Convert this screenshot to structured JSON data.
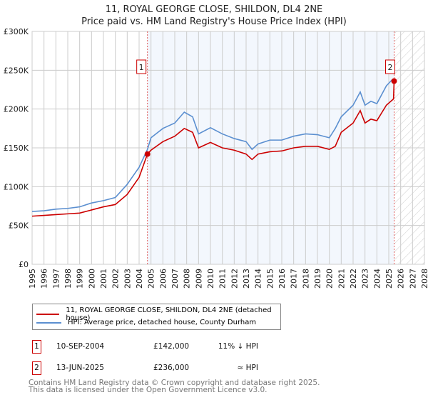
{
  "title": "11, ROYAL GEORGE CLOSE, SHILDON, DL4 2NE",
  "subtitle": "Price paid vs. HM Land Registry's House Price Index (HPI)",
  "chart_data": {
    "type": "line",
    "xlim": [
      1995,
      2028
    ],
    "ylim": [
      0,
      300000
    ],
    "x_ticks": [
      "1995",
      "1996",
      "1997",
      "1998",
      "1999",
      "2000",
      "2001",
      "2002",
      "2003",
      "2004",
      "2005",
      "2006",
      "2007",
      "2008",
      "2009",
      "2010",
      "2011",
      "2012",
      "2013",
      "2014",
      "2015",
      "2016",
      "2017",
      "2018",
      "2019",
      "2020",
      "2021",
      "2022",
      "2023",
      "2024",
      "2025",
      "2026",
      "2027",
      "2028"
    ],
    "y_ticks": [
      {
        "v": 0,
        "label": "£0"
      },
      {
        "v": 50000,
        "label": "£50K"
      },
      {
        "v": 100000,
        "label": "£100K"
      },
      {
        "v": 150000,
        "label": "£150K"
      },
      {
        "v": 200000,
        "label": "£200K"
      },
      {
        "v": 250000,
        "label": "£250K"
      },
      {
        "v": 300000,
        "label": "£300K"
      }
    ],
    "grid": true,
    "shaded_span": [
      2004.7,
      2025.45
    ],
    "hatched_from": 2025.45,
    "series": [
      {
        "name": "11, ROYAL GEORGE CLOSE, SHILDON, DL4 2NE (detached house)",
        "color": "#cc0000",
        "x": [
          1995,
          1996,
          1997,
          1998,
          1999,
          2000,
          2001,
          2002,
          2003,
          2004,
          2004.7,
          2005,
          2006,
          2007,
          2007.8,
          2008.5,
          2009,
          2010,
          2011,
          2012,
          2013,
          2013.5,
          2014,
          2015,
          2016,
          2017,
          2018,
          2019,
          2020,
          2020.5,
          2021,
          2022,
          2022.6,
          2023,
          2023.5,
          2024,
          2024.8,
          2025.4,
          2025.45
        ],
        "y": [
          62000,
          63000,
          64000,
          65000,
          66000,
          70000,
          74000,
          77000,
          90000,
          112000,
          142000,
          147000,
          158000,
          165000,
          175000,
          170000,
          150000,
          157000,
          150000,
          147000,
          142000,
          135000,
          142000,
          145000,
          146000,
          150000,
          152000,
          152000,
          148000,
          152000,
          170000,
          182000,
          198000,
          182000,
          187000,
          185000,
          205000,
          213000,
          236000
        ]
      },
      {
        "name": "HPI: Average price, detached house, County Durham",
        "color": "#5b8fd0",
        "x": [
          1995,
          1996,
          1997,
          1998,
          1999,
          2000,
          2001,
          2002,
          2003,
          2004,
          2004.7,
          2005,
          2006,
          2007,
          2007.8,
          2008.5,
          2009,
          2010,
          2011,
          2012,
          2013,
          2013.5,
          2014,
          2015,
          2016,
          2017,
          2018,
          2019,
          2020,
          2020.5,
          2021,
          2022,
          2022.6,
          2023,
          2023.5,
          2024,
          2024.8,
          2025.3
        ],
        "y": [
          68000,
          69000,
          71000,
          72000,
          74000,
          79000,
          82000,
          86000,
          103000,
          125000,
          148000,
          163000,
          175000,
          182000,
          196000,
          190000,
          168000,
          176000,
          168000,
          162000,
          158000,
          148000,
          155000,
          160000,
          160000,
          165000,
          168000,
          167000,
          163000,
          175000,
          190000,
          205000,
          222000,
          205000,
          210000,
          207000,
          230000,
          238000
        ]
      }
    ],
    "sales": [
      {
        "label": "1",
        "x": 2004.7,
        "y": 142000
      },
      {
        "label": "2",
        "x": 2025.45,
        "y": 236000
      }
    ]
  },
  "legend": {
    "items": [
      {
        "label": "11, ROYAL GEORGE CLOSE, SHILDON, DL4 2NE (detached house)",
        "color": "#cc0000"
      },
      {
        "label": "HPI: Average price, detached house, County Durham",
        "color": "#5b8fd0"
      }
    ]
  },
  "transactions": [
    {
      "num": "1",
      "date": "10-SEP-2004",
      "price": "£142,000",
      "hpi": "11% ↓ HPI"
    },
    {
      "num": "2",
      "date": "13-JUN-2025",
      "price": "£236,000",
      "hpi": "≈ HPI"
    }
  ],
  "footer": {
    "line1": "Contains HM Land Registry data © Crown copyright and database right 2025.",
    "line2": "This data is licensed under the Open Government Licence v3.0."
  }
}
